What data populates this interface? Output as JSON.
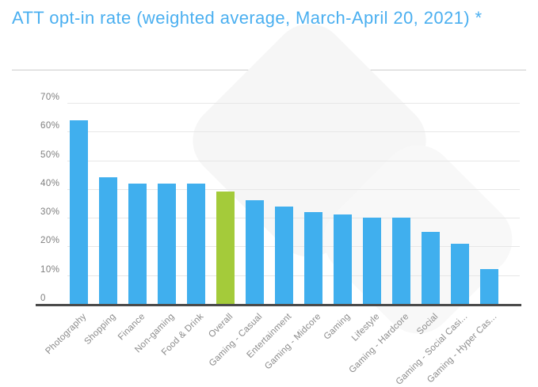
{
  "page": {
    "title": "ATT opt-in rate (weighted average, March-April 20, 2021) *"
  },
  "colors": {
    "title_text": "#4AAFF0",
    "bar": "#40AFEE",
    "highlight_bar": "#A4CB3A",
    "axis_line": "#4A4A4A",
    "gridline": "#E7E7E7",
    "y_tick_label": "#7E7E7E",
    "x_tick_label": "#8B8B8B",
    "divider": "#CCCCCC",
    "watermark": "#F6F6F6"
  },
  "chart_data": {
    "type": "bar",
    "title": "ATT opt-in rate (weighted average, March-April 20, 2021) *",
    "categories": [
      "Photography",
      "Shopping",
      "Finance",
      "Non-gaming",
      "Food & Drink",
      "Overall",
      "Gaming - Casual",
      "Entertainment",
      "Gaming - Midcore",
      "Gaming",
      "Lifestyle",
      "Gaming - Hardcore",
      "Social",
      "Gaming - Social Casi...",
      "Gaming - Hyper Cas..."
    ],
    "values": [
      64,
      44,
      42,
      42,
      42,
      39,
      36,
      34,
      32,
      31,
      30,
      30,
      25,
      21,
      12
    ],
    "unit": "%",
    "highlight_index": 5,
    "highlight_category": "Overall",
    "xlabel": "",
    "ylabel": "",
    "ylim": [
      0,
      70
    ],
    "yticks": [
      0,
      10,
      20,
      30,
      40,
      50,
      60,
      70
    ],
    "ytick_labels": [
      "0",
      "10%",
      "20%",
      "30%",
      "40%",
      "50%",
      "60%",
      "70%"
    ],
    "x_label_rotation_deg": -45,
    "grid": true,
    "legend": false,
    "bar_color": "#40AFEE",
    "highlight_color": "#A4CB3A"
  }
}
